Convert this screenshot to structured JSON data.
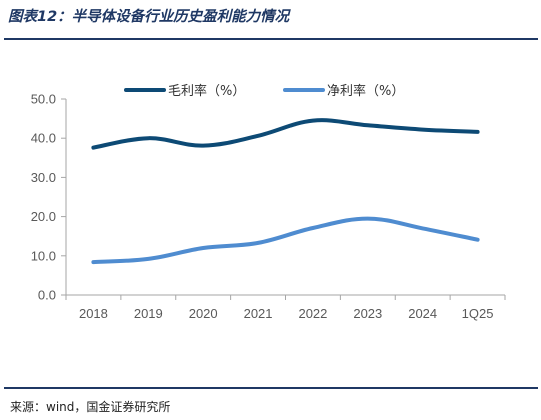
{
  "figure": {
    "title": "图表12：半导体设备行业历史盈利能力情况",
    "source": "来源：wind，国金证券研究所"
  },
  "colors": {
    "accent_dark": "#1f3864",
    "series_gross": "#0d4a75",
    "series_net": "#4f8cd0",
    "axis": "#a6a6a6"
  },
  "chart_data": {
    "type": "line",
    "title": "",
    "xlabel": "",
    "ylabel": "",
    "categories": [
      "2018",
      "2019",
      "2020",
      "2021",
      "2022",
      "2023",
      "2024",
      "1Q25"
    ],
    "ylim": [
      0,
      50
    ],
    "yticks": [
      "0.0",
      "10.0",
      "20.0",
      "30.0",
      "40.0",
      "50.0"
    ],
    "grid": false,
    "legend_position": "top-center",
    "series": [
      {
        "name": "毛利率（%）",
        "color": "#0d4a75",
        "values": [
          37.6,
          40.0,
          38.1,
          40.6,
          44.5,
          43.3,
          42.2,
          41.6
        ]
      },
      {
        "name": "净利率（%）",
        "color": "#4f8cd0",
        "values": [
          8.4,
          9.2,
          12.0,
          13.3,
          17.1,
          19.5,
          17.0,
          14.1
        ]
      }
    ]
  }
}
